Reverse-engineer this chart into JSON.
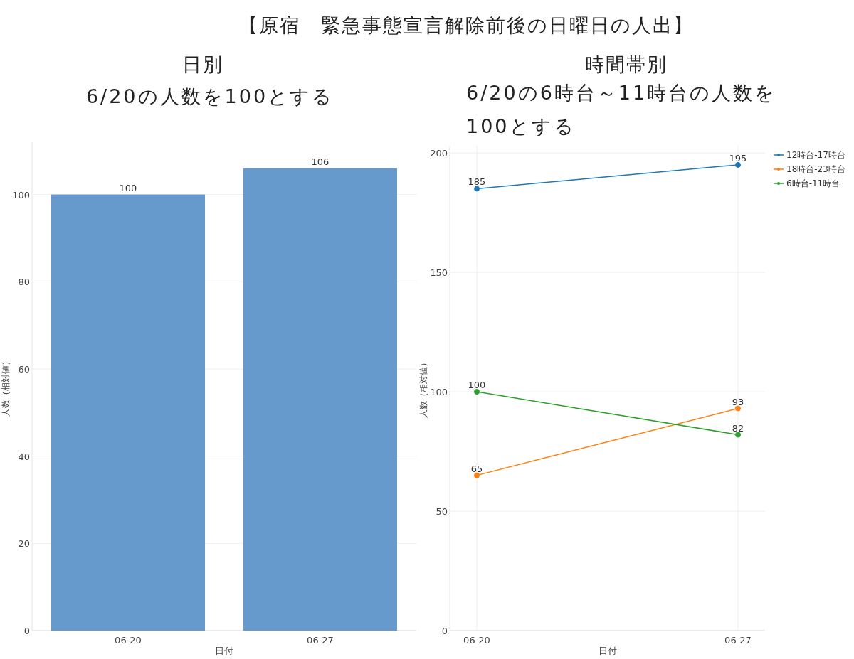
{
  "chart_data": [
    {
      "type": "bar",
      "title": "日別",
      "subtitle": "6/20の人数を100とする",
      "annotations": [
        "【原宿　緊急事態宣言解除前後の日曜日の人出】"
      ],
      "xlabel": "日付",
      "ylabel": "人数（相対値）",
      "categories": [
        "06-20",
        "06-27"
      ],
      "values": [
        100,
        106
      ],
      "color": "#6699cc",
      "ylim": [
        0,
        112
      ],
      "yticks": [
        0,
        20,
        40,
        60,
        80,
        100
      ],
      "grid": "y",
      "data_labels": true
    },
    {
      "type": "line",
      "title": "時間帯別",
      "subtitle": "6/20の6時台～11時台の人数を100とする",
      "xlabel": "日付",
      "ylabel": "人数（相対値）",
      "categories": [
        "06-20",
        "06-27"
      ],
      "series": [
        {
          "name": "12時台-17時台",
          "color": "#1f77b4",
          "values": [
            185,
            195
          ]
        },
        {
          "name": "18時台-23時台",
          "color": "#ff7f0e",
          "values": [
            65,
            93
          ]
        },
        {
          "name": "6時台-11時台",
          "color": "#2ca02c",
          "values": [
            100,
            82
          ]
        }
      ],
      "ylim": [
        0,
        203
      ],
      "yticks": [
        0,
        50,
        100,
        150,
        200
      ],
      "grid": true,
      "marker": "circle",
      "legend": "top right",
      "data_labels": true
    }
  ]
}
